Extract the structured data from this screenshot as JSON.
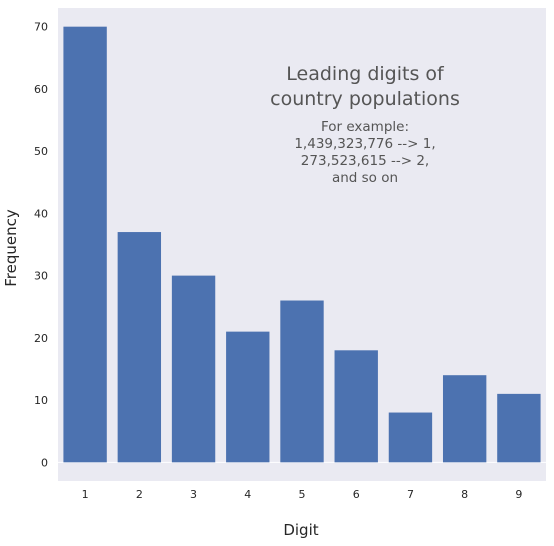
{
  "chart_data": {
    "type": "bar",
    "categories": [
      "1",
      "2",
      "3",
      "4",
      "5",
      "6",
      "7",
      "8",
      "9"
    ],
    "values": [
      70,
      37,
      30,
      21,
      26,
      18,
      8,
      14,
      11
    ],
    "xlabel": "Digit",
    "ylabel": "Frequency",
    "ylim": [
      -3,
      73
    ],
    "yticks": [
      0,
      10,
      20,
      30,
      40,
      50,
      60,
      70
    ],
    "grid": false,
    "annotation": {
      "title_lines": [
        "Leading digits of",
        "country populations"
      ],
      "body_lines": [
        "For example:",
        "1,439,323,776 --> 1,",
        "273,523,615 --> 2,",
        "and so on"
      ]
    },
    "colors": {
      "bar": "#4c72b0",
      "plot_background": "#eaeaf2"
    }
  }
}
